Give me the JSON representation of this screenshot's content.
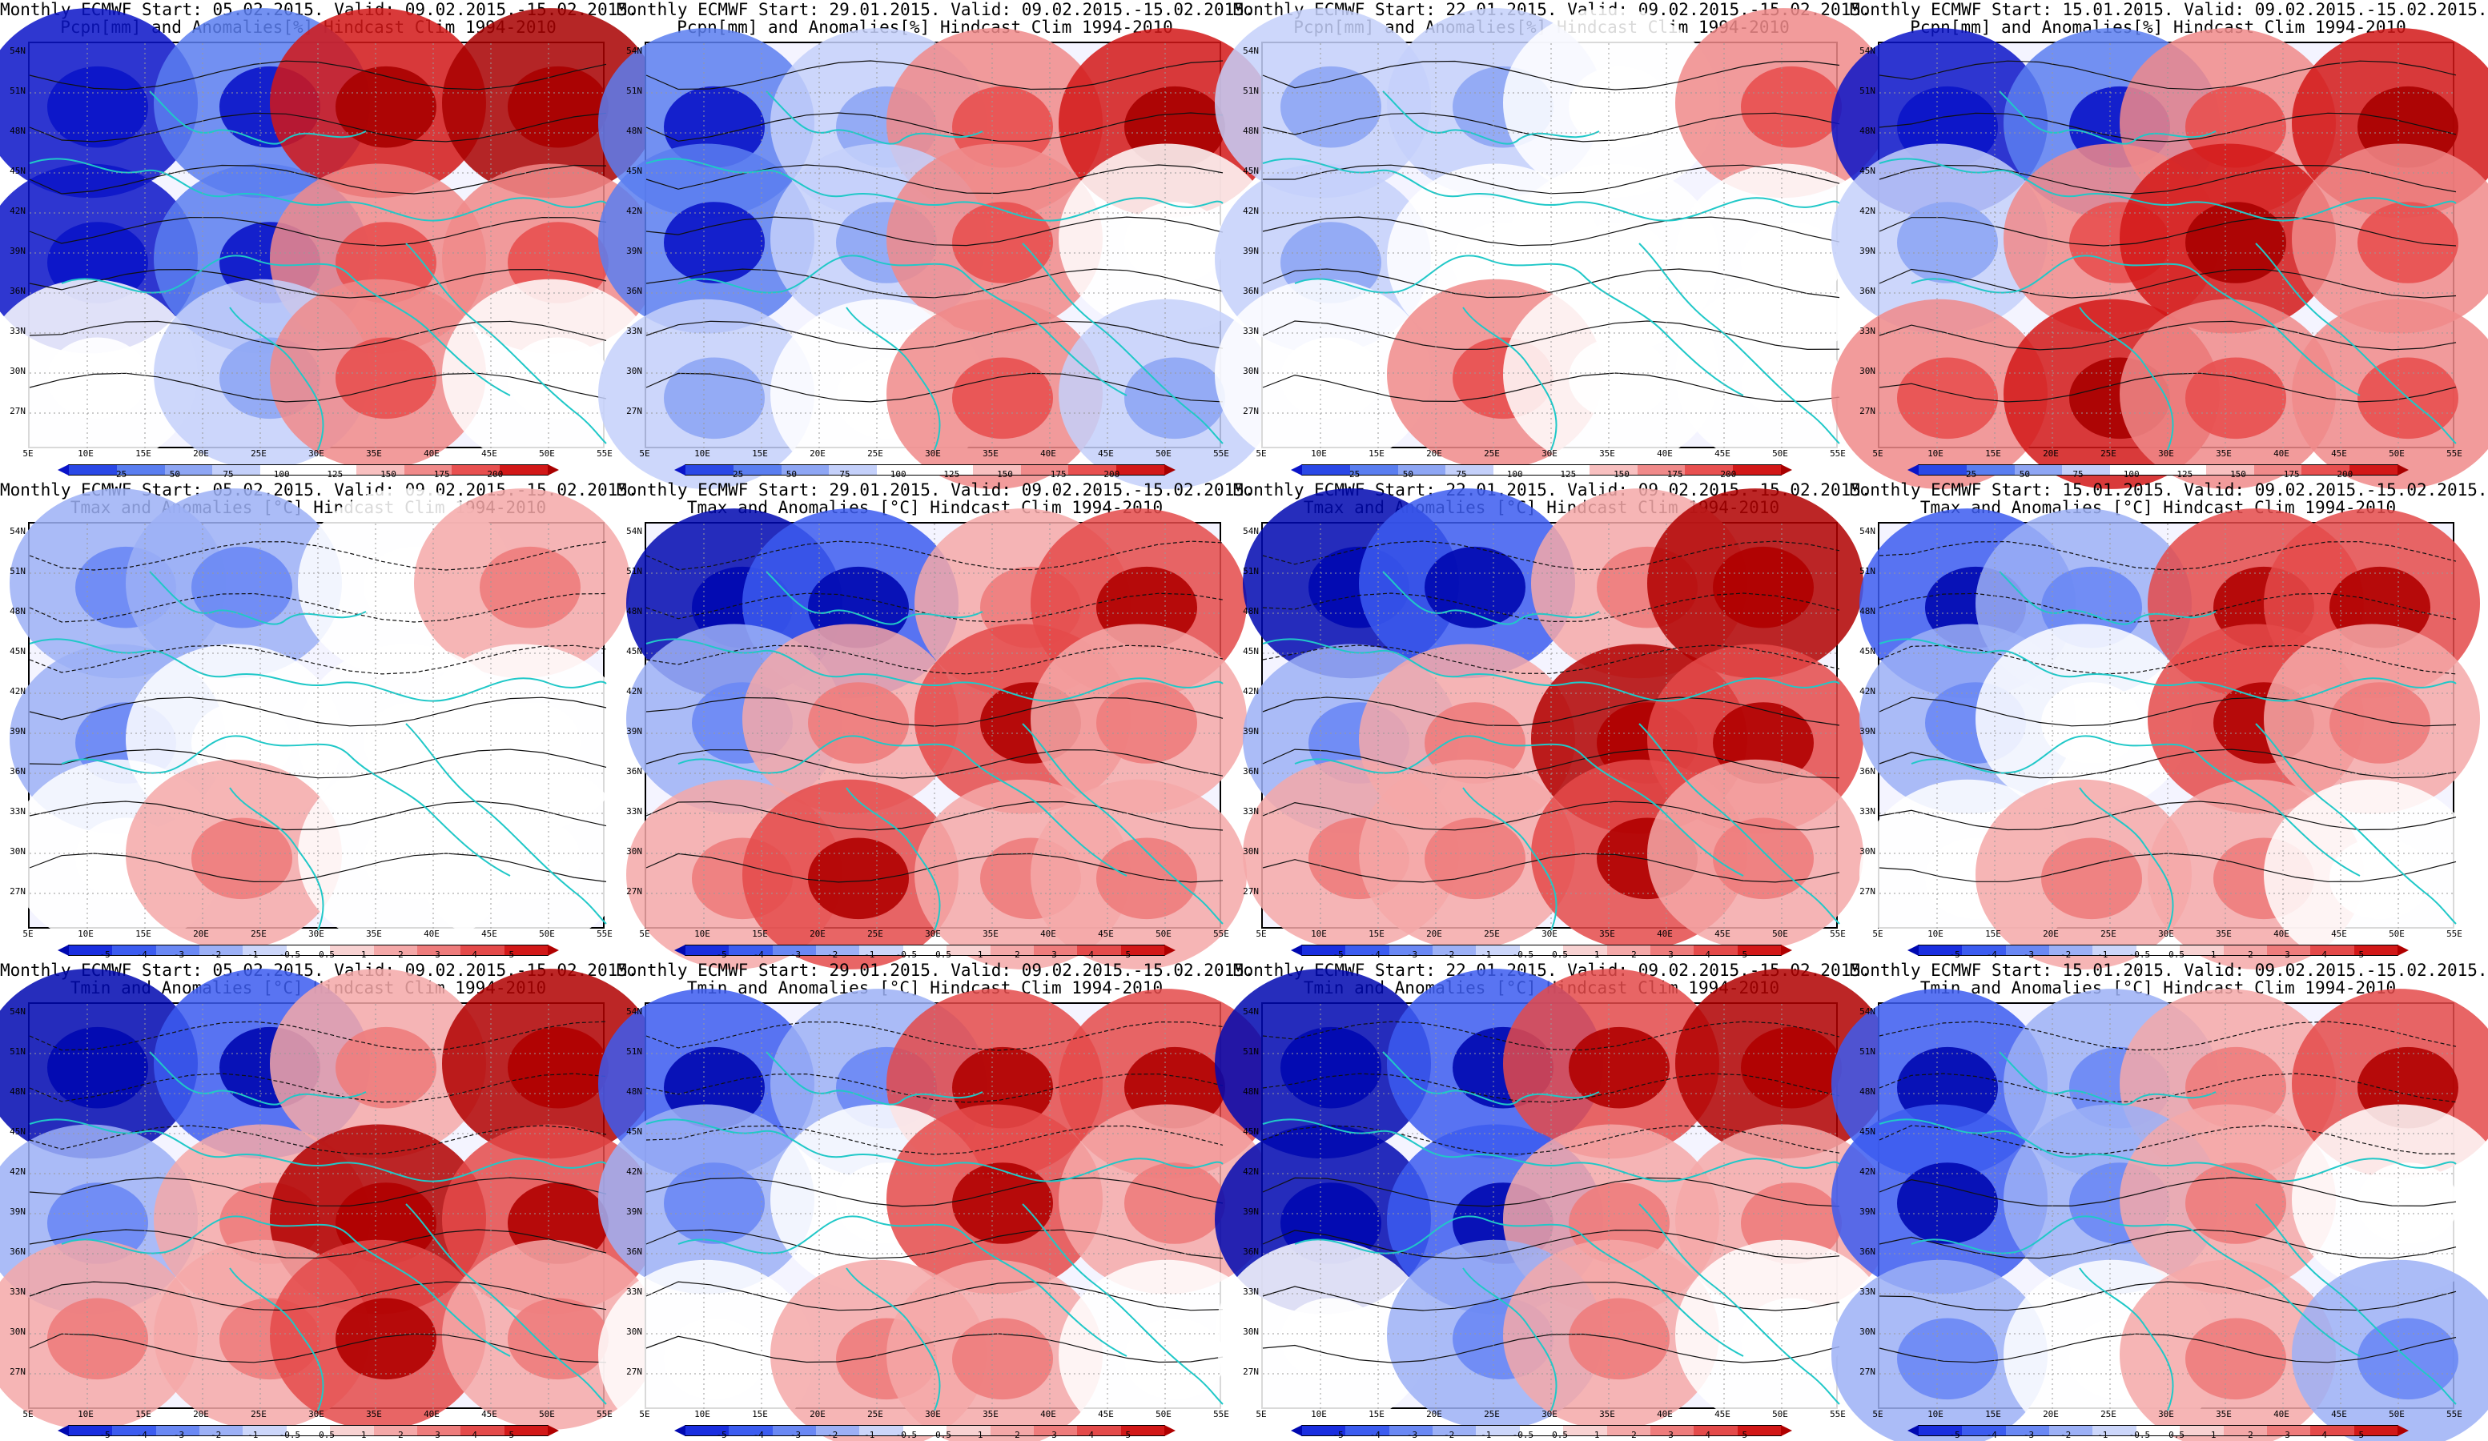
{
  "rows": [
    {
      "variable": "Pcpn[mm] and Anomalies[%] Hindcast Clim 1994-2010",
      "kind": "precip",
      "colorbar_labels": [
        "25",
        "50",
        "75",
        "100",
        "125",
        "150",
        "175",
        "200"
      ],
      "colorbar_colors": [
        "#0a14c8",
        "#2a48e6",
        "#5a7ef0",
        "#8ea6f4",
        "#c4d0fa",
        "#ffffff",
        "#ffffff",
        "#f8c0c0",
        "#f08a8a",
        "#e85050",
        "#d21818",
        "#a80000"
      ]
    },
    {
      "variable": "Tmax and Anomalies [°C] Hindcast Clim 1994-2010",
      "kind": "temp",
      "colorbar_labels": [
        "-5",
        "-4",
        "-3",
        "-2",
        "-1",
        "-0.5",
        "0.5",
        "1",
        "2",
        "3",
        "4",
        "5"
      ],
      "colorbar_colors": [
        "#0008b0",
        "#1a2ee0",
        "#3c5cf0",
        "#6a88f4",
        "#9cb0f6",
        "#ccd6fa",
        "#ffffff",
        "#f8d2d2",
        "#f4a8a8",
        "#ee7c7c",
        "#e44a4a",
        "#d21818",
        "#b00000"
      ]
    },
    {
      "variable": "Tmin and Anomalies [°C] Hindcast Clim 1994-2010",
      "kind": "temp",
      "colorbar_labels": [
        "-5",
        "-4",
        "-3",
        "-2",
        "-1",
        "-0.5",
        "0.5",
        "1",
        "2",
        "3",
        "4",
        "5"
      ],
      "colorbar_colors": [
        "#0008b0",
        "#1a2ee0",
        "#3c5cf0",
        "#6a88f4",
        "#9cb0f6",
        "#ccd6fa",
        "#ffffff",
        "#f8d2d2",
        "#f4a8a8",
        "#ee7c7c",
        "#e44a4a",
        "#d21818",
        "#b00000"
      ]
    }
  ],
  "columns": [
    {
      "header": "Monthly ECMWF Start: 05.02.2015. Valid: 09.02.2015.-15.02.2015."
    },
    {
      "header": "Monthly ECMWF Start: 29.01.2015. Valid: 09.02.2015.-15.02.2015."
    },
    {
      "header": "Monthly ECMWF Start: 22.01.2015. Valid: 09.02.2015.-15.02.2015."
    },
    {
      "header": "Monthly ECMWF Start: 15.01.2015. Valid: 09.02.2015.-15.02.2015."
    }
  ],
  "lat_labels": [
    "54N",
    "51N",
    "48N",
    "45N",
    "42N",
    "39N",
    "36N",
    "33N",
    "30N",
    "27N"
  ],
  "lon_labels": [
    "5E",
    "10E",
    "15E",
    "20E",
    "25E",
    "30E",
    "35E",
    "40E",
    "45E",
    "50E",
    "55E"
  ],
  "anomaly_pattern": [
    [
      -3,
      -2,
      2,
      3,
      -3,
      -2,
      1,
      1,
      0,
      -1,
      1,
      0
    ],
    [
      -2,
      -1,
      1,
      2,
      -2,
      -1,
      1,
      0,
      -1,
      0,
      1,
      -1
    ],
    [
      -1,
      -1,
      0,
      1,
      -1,
      0,
      0,
      0,
      0,
      1,
      0,
      0
    ],
    [
      -3,
      -2,
      1,
      2,
      -1,
      1,
      2,
      1,
      1,
      2,
      1,
      1
    ],
    [
      -3,
      -2,
      1,
      3,
      -1,
      1,
      3,
      2,
      1,
      1,
      2,
      1
    ],
    [
      -2,
      -1,
      2,
      2,
      -1,
      0,
      2,
      1,
      0,
      1,
      1,
      0
    ]
  ],
  "colors": {
    "coast": "#20c8c8",
    "contour": "#111111",
    "grid": "#999999"
  }
}
